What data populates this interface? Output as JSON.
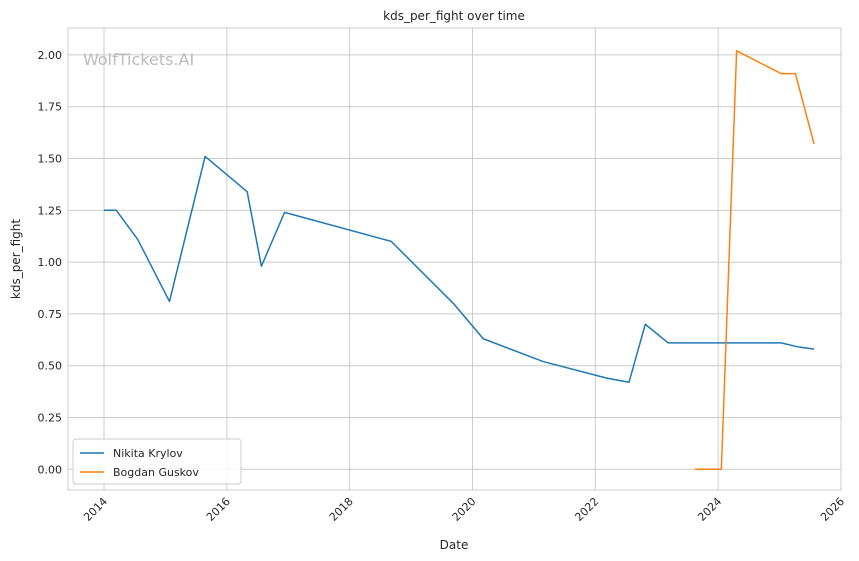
{
  "watermark": "WolfTickets.AI",
  "chart_data": {
    "type": "line",
    "title": "kds_per_fight over time",
    "xlabel": "Date",
    "ylabel": "kds_per_fight",
    "xlim": [
      "2013-06-01",
      "2026-01-01"
    ],
    "ylim": [
      -0.1,
      2.13
    ],
    "x_ticks": [
      {
        "label": "2014",
        "date": "2014-01-01"
      },
      {
        "label": "2016",
        "date": "2016-01-01"
      },
      {
        "label": "2018",
        "date": "2018-01-01"
      },
      {
        "label": "2020",
        "date": "2020-01-01"
      },
      {
        "label": "2022",
        "date": "2022-01-01"
      },
      {
        "label": "2024",
        "date": "2024-01-01"
      },
      {
        "label": "2026",
        "date": "2026-01-01"
      }
    ],
    "y_ticks": [
      0.0,
      0.25,
      0.5,
      0.75,
      1.0,
      1.25,
      1.5,
      1.75,
      2.0
    ],
    "y_tick_labels": [
      "0.00",
      "0.25",
      "0.50",
      "0.75",
      "1.00",
      "1.25",
      "1.50",
      "1.75",
      "2.00"
    ],
    "grid": true,
    "legend_position": "lower-left",
    "series": [
      {
        "name": "Nikita Krylov",
        "color": "#1f77b4",
        "points": [
          {
            "x": "2014-01-01",
            "y": 1.25
          },
          {
            "x": "2014-03-15",
            "y": 1.25
          },
          {
            "x": "2014-07-20",
            "y": 1.11
          },
          {
            "x": "2015-01-25",
            "y": 0.81
          },
          {
            "x": "2015-08-25",
            "y": 1.51
          },
          {
            "x": "2016-05-01",
            "y": 1.34
          },
          {
            "x": "2016-07-25",
            "y": 0.98
          },
          {
            "x": "2016-12-10",
            "y": 1.24
          },
          {
            "x": "2018-09-05",
            "y": 1.1
          },
          {
            "x": "2019-09-10",
            "y": 0.8
          },
          {
            "x": "2020-03-05",
            "y": 0.63
          },
          {
            "x": "2021-02-25",
            "y": 0.52
          },
          {
            "x": "2022-03-10",
            "y": 0.44
          },
          {
            "x": "2022-07-20",
            "y": 0.42
          },
          {
            "x": "2022-10-25",
            "y": 0.7
          },
          {
            "x": "2023-03-10",
            "y": 0.61
          },
          {
            "x": "2025-01-10",
            "y": 0.61
          },
          {
            "x": "2025-04-25",
            "y": 0.59
          },
          {
            "x": "2025-07-25",
            "y": 0.58
          }
        ]
      },
      {
        "name": "Bogdan Guskov",
        "color": "#ff7f0e",
        "points": [
          {
            "x": "2023-08-15",
            "y": 0.0
          },
          {
            "x": "2024-01-20",
            "y": 0.0
          },
          {
            "x": "2024-04-20",
            "y": 2.02
          },
          {
            "x": "2025-01-10",
            "y": 1.91
          },
          {
            "x": "2025-04-05",
            "y": 1.91
          },
          {
            "x": "2025-07-25",
            "y": 1.57
          }
        ]
      }
    ]
  }
}
